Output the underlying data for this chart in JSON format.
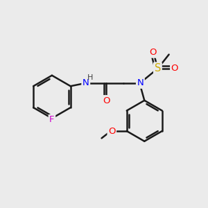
{
  "bg_color": "#ebebeb",
  "bond_color": "#1a1a1a",
  "bond_width": 1.8,
  "atom_colors": {
    "F": "#cc00cc",
    "O": "#ff0000",
    "N": "#0000ff",
    "S": "#ccaa00",
    "H": "#404040",
    "C": "#1a1a1a"
  },
  "font_size": 9.5,
  "small_font": 8.0,
  "figsize": [
    3.0,
    3.0
  ],
  "dpi": 100
}
